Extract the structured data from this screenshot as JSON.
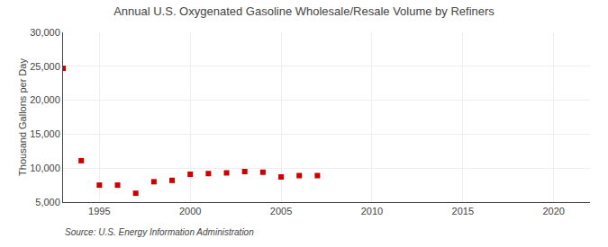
{
  "chart_data": {
    "type": "scatter",
    "title": "Annual U.S. Oxygenated Gasoline Wholesale/Resale Volume by Refiners",
    "ylabel": "Thousand Gallons per Day",
    "annotations": [
      "Source: U.S. Energy Information Administration"
    ],
    "x": [
      1993,
      1994,
      1995,
      1996,
      1997,
      1998,
      1999,
      2000,
      2001,
      2002,
      2003,
      2004,
      2005,
      2006,
      2007
    ],
    "values": [
      24700,
      11100,
      7500,
      7500,
      6300,
      8000,
      8200,
      9100,
      9200,
      9300,
      9500,
      9400,
      8700,
      8900,
      8900
    ],
    "color": "#cc0000",
    "marker": "square",
    "xlim": [
      1993,
      2022
    ],
    "xticks": [
      1995,
      2000,
      2005,
      2010,
      2015,
      2020
    ],
    "ylim": [
      5000,
      30000
    ],
    "yticks": [
      {
        "value": 5000,
        "label": "5,000"
      },
      {
        "value": 10000,
        "label": "10,000"
      },
      {
        "value": 15000,
        "label": "15,000"
      },
      {
        "value": 20000,
        "label": "20,000"
      },
      {
        "value": 25000,
        "label": "25,000"
      },
      {
        "value": 30000,
        "label": "30,000"
      }
    ],
    "grid": true
  }
}
